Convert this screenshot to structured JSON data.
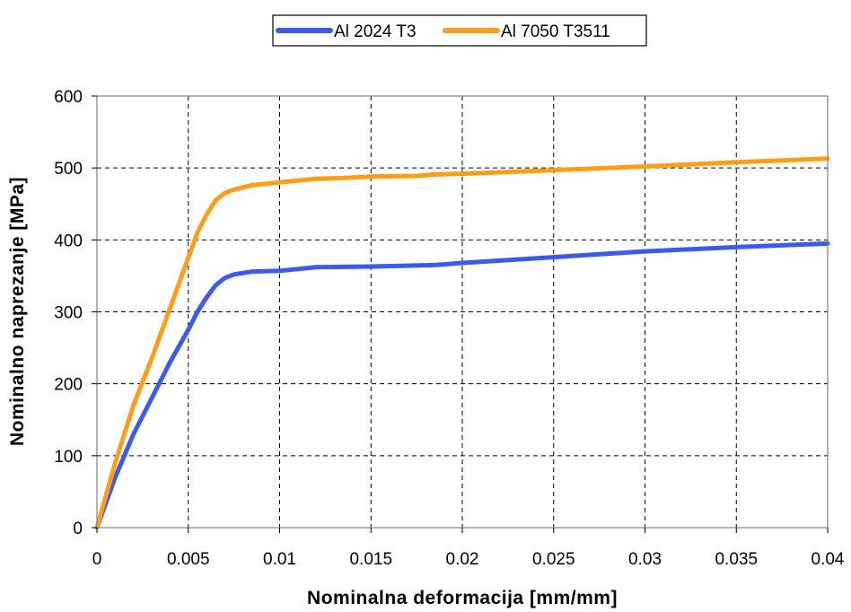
{
  "chart_data": {
    "type": "line",
    "title": "",
    "xlabel": "Nominalna deformacija [mm/mm]",
    "ylabel": "Nominalno naprezanje [MPa]",
    "xlim": [
      0,
      0.04
    ],
    "ylim": [
      0,
      600
    ],
    "x_ticks": [
      "0",
      "0.005",
      "0.01",
      "0.015",
      "0.02",
      "0.025",
      "0.03",
      "0.035",
      "0.04"
    ],
    "y_ticks": [
      "0",
      "100",
      "200",
      "300",
      "400",
      "500",
      "600"
    ],
    "x_tick_values": [
      0,
      0.005,
      0.01,
      0.015,
      0.02,
      0.025,
      0.03,
      0.035,
      0.04
    ],
    "y_tick_values": [
      0,
      100,
      200,
      300,
      400,
      500,
      600
    ],
    "grid": true,
    "legend_position": "top-center",
    "series": [
      {
        "name": "Al 2024 T3",
        "color": "#3b5bf0",
        "points": [
          [
            0,
            0
          ],
          [
            0.001,
            70
          ],
          [
            0.002,
            130
          ],
          [
            0.003,
            180
          ],
          [
            0.004,
            230
          ],
          [
            0.005,
            275
          ],
          [
            0.0055,
            300
          ],
          [
            0.006,
            320
          ],
          [
            0.0065,
            337
          ],
          [
            0.007,
            347
          ],
          [
            0.0075,
            352
          ],
          [
            0.0085,
            356
          ],
          [
            0.01,
            357
          ],
          [
            0.012,
            362
          ],
          [
            0.015,
            363
          ],
          [
            0.0185,
            365
          ],
          [
            0.02,
            368
          ],
          [
            0.025,
            376
          ],
          [
            0.03,
            384
          ],
          [
            0.035,
            390
          ],
          [
            0.04,
            395
          ]
        ]
      },
      {
        "name": "Al 7050 T3511",
        "color": "#ff9e16",
        "points": [
          [
            0,
            0
          ],
          [
            0.001,
            90
          ],
          [
            0.002,
            170
          ],
          [
            0.003,
            235
          ],
          [
            0.004,
            305
          ],
          [
            0.005,
            375
          ],
          [
            0.0055,
            410
          ],
          [
            0.006,
            435
          ],
          [
            0.0065,
            455
          ],
          [
            0.007,
            465
          ],
          [
            0.0075,
            470
          ],
          [
            0.0085,
            476
          ],
          [
            0.01,
            480
          ],
          [
            0.012,
            485
          ],
          [
            0.0135,
            486
          ],
          [
            0.015,
            488
          ],
          [
            0.0175,
            489
          ],
          [
            0.0185,
            491
          ],
          [
            0.02,
            492
          ],
          [
            0.025,
            497
          ],
          [
            0.03,
            502
          ],
          [
            0.035,
            508
          ],
          [
            0.04,
            513
          ]
        ]
      }
    ]
  }
}
